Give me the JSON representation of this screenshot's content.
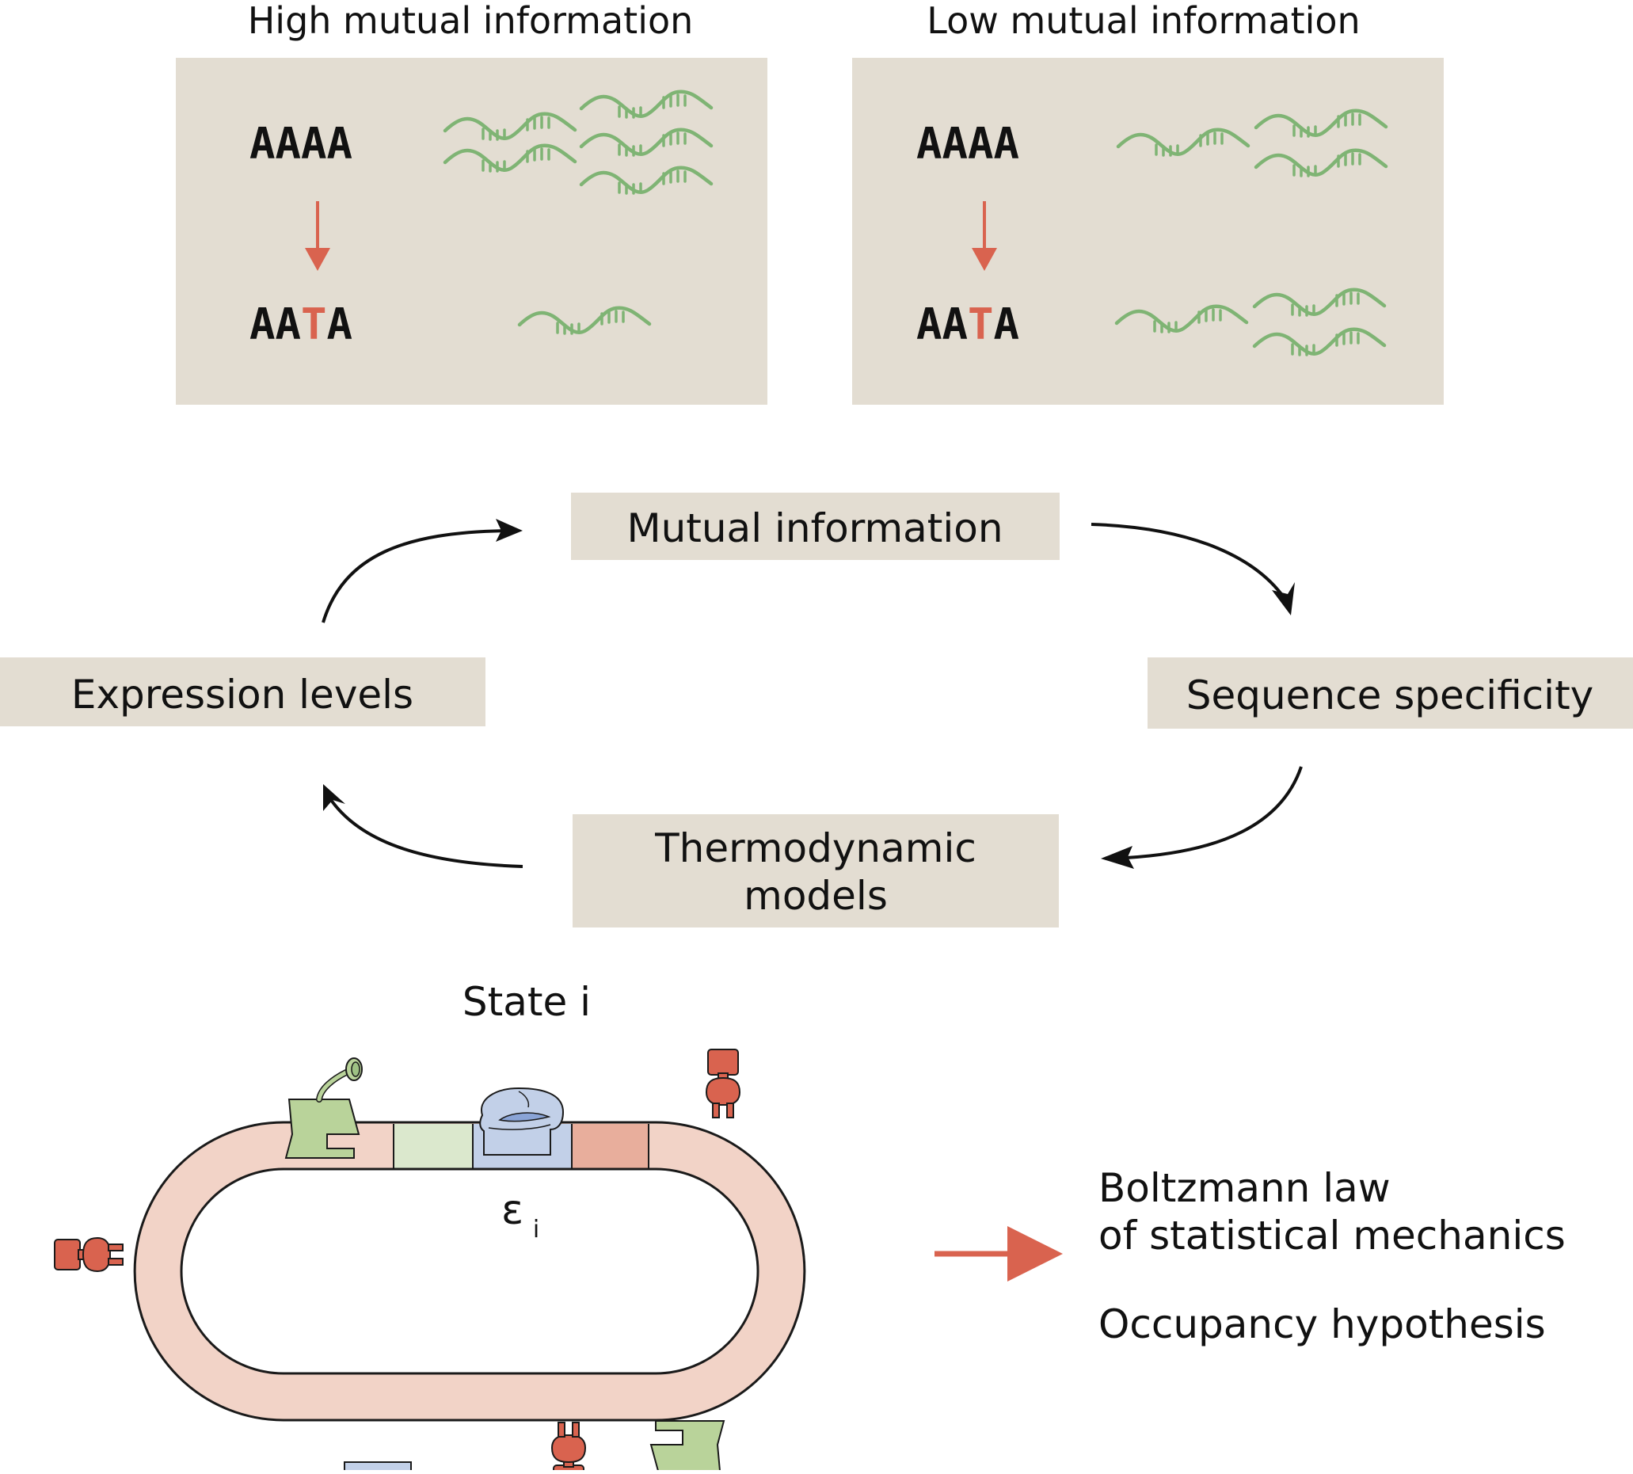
{
  "panels": {
    "high": {
      "title": "High mutual information",
      "seq_top": "AAAA",
      "seq_bottom": {
        "pre": "AA",
        "mut": "T",
        "post": "A"
      }
    },
    "low": {
      "title": "Low mutual information",
      "seq_top": "AAAA",
      "seq_bottom": {
        "pre": "AA",
        "mut": "T",
        "post": "A"
      }
    }
  },
  "cycle": {
    "top": "Mutual information",
    "right": "Sequence specificity",
    "bottom_line1": "Thermodynamic",
    "bottom_line2": "models",
    "left": "Expression levels"
  },
  "bottom": {
    "state_label": "State i",
    "energy_symbol": "ε",
    "energy_subscript": "i",
    "boltzmann_line1": "Boltzmann law",
    "boltzmann_line2": "of statistical mechanics",
    "occupancy": "Occupancy hypothesis"
  },
  "colors": {
    "panel_bg": "#e3ddd2",
    "mutation": "#d9634f",
    "mrna": "#7fb474",
    "plasmid": "#f2d3c7",
    "site_green": "#dbe8cd",
    "site_blue": "#c2d0e8",
    "site_red": "#e8ae9c",
    "protein_green": "#b9d39a",
    "protein_blue": "#c2d0e8",
    "protein_red": "#d9634f",
    "arrow_black": "#111111",
    "arrow_red": "#d9634f"
  }
}
